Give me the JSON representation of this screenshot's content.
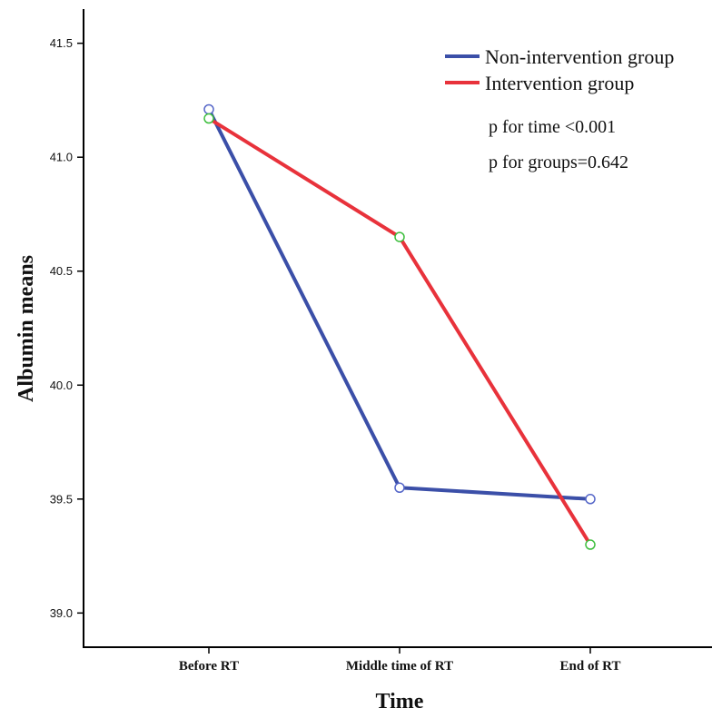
{
  "chart_data": {
    "type": "line",
    "title": "",
    "xlabel": "Time",
    "ylabel": "Albumin means",
    "categories": [
      "Before RT",
      "Middle time of RT",
      "End of RT"
    ],
    "ylim": [
      38.85,
      41.65
    ],
    "yticks": [
      39.0,
      39.5,
      40.0,
      40.5,
      41.0,
      41.5
    ],
    "ytick_labels": [
      "39.0",
      "39.5",
      "40.0",
      "40.5",
      "41.0",
      "41.5"
    ],
    "grid": false,
    "legend_position": "top-right",
    "series": [
      {
        "name": "Non-intervention group",
        "color": "#3B4FA8",
        "marker_color": "#5566C8",
        "values": [
          41.21,
          39.55,
          39.5
        ]
      },
      {
        "name": "Intervention group",
        "color": "#E8323B",
        "marker_color": "#3DBE3D",
        "values": [
          41.17,
          40.65,
          39.3
        ]
      }
    ],
    "annotations": [
      "p for time <0.001",
      "p for groups=0.642"
    ]
  }
}
